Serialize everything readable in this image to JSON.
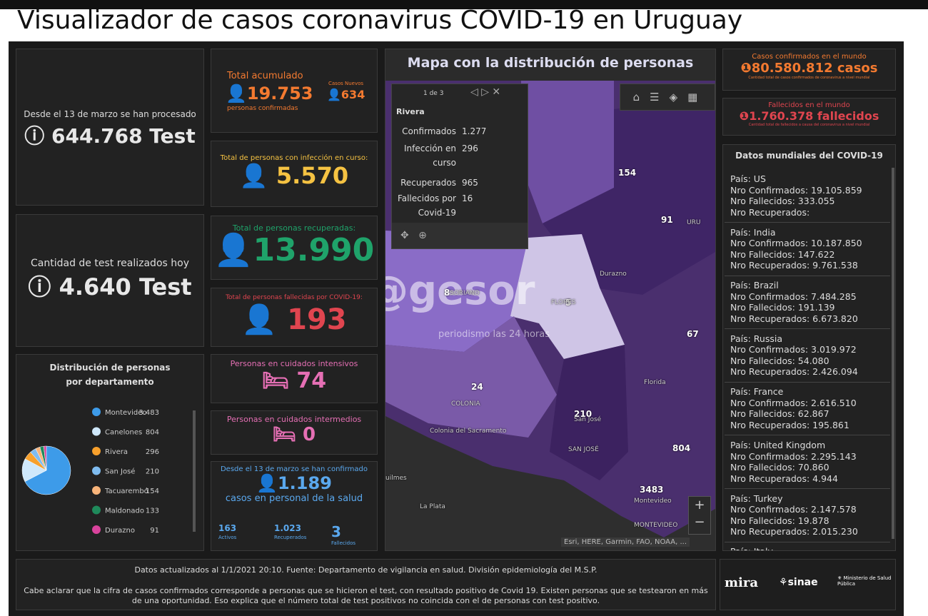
{
  "header": {
    "title": "Visualizador de casos coronavirus COVID-19 en Uruguay"
  },
  "tests": {
    "caption": "Desde el 13 de marzo se han procesado",
    "value": "644.768 Test"
  },
  "today": {
    "caption": "Cantidad de test realizados hoy",
    "value": "4.640 Test"
  },
  "total": {
    "label": "Total acumulado",
    "value": "19.753",
    "sub": "personas confirmadas",
    "new_label": "Casos Nuevos",
    "new_value": "634"
  },
  "active": {
    "label": "Total de personas con infección en curso:",
    "value": "5.570"
  },
  "recovered": {
    "label": "Total de personas recuperadas:",
    "value": "13.990"
  },
  "deaths": {
    "label": "Total de personas fallecidas por COVID-19:",
    "value": "193"
  },
  "icu": {
    "label": "Personas en cuidados intensivos",
    "value": "74"
  },
  "intermediate": {
    "label": "Personas en cuidados intermedios",
    "value": "0"
  },
  "health": {
    "caption": "Desde el 13 de marzo se han confirmado",
    "value": "1.189",
    "sub": "casos en personal de la salud",
    "stats": [
      {
        "value": "163",
        "label": "Activos"
      },
      {
        "value": "1.023",
        "label": "Recuperados"
      },
      {
        "value": "3",
        "label": "Fallecidos"
      }
    ]
  },
  "chart_data": {
    "type": "pie",
    "title": "Distribución de personas por departamento",
    "categories": [
      "Montevideo",
      "Canelones",
      "Rivera",
      "San José",
      "Tacuarembó",
      "Maldonado",
      "Durazno"
    ],
    "values": [
      3483,
      804,
      296,
      210,
      154,
      133,
      91
    ],
    "value_labels": [
      "3.483",
      "804",
      "296",
      "210",
      "154",
      "133",
      "91"
    ],
    "colors": [
      "#3d9be9",
      "#cfe8fb",
      "#f7a02c",
      "#7fbcf0",
      "#f8b47a",
      "#1f8a5b",
      "#d9439c"
    ]
  },
  "map": {
    "title": "Mapa con la distribución de personas",
    "popup": {
      "pager": "1 de 3",
      "name": "Rivera",
      "rows": [
        {
          "label": "Confirmados",
          "value": "1.277"
        },
        {
          "label": "Infección en curso",
          "value": "296"
        },
        {
          "label": "Recuperados",
          "value": "965"
        },
        {
          "label": "Fallecidos por Covid-19",
          "value": "16"
        }
      ]
    },
    "labels": [
      "154",
      "91",
      "67",
      "24",
      "210",
      "804",
      "3483",
      "5",
      "8",
      "URU",
      "Durazno",
      "FLORES",
      "SORIANO",
      "COLONIA",
      "Florida",
      "San José",
      "SAN JOSÉ",
      "Colonia del Sacramento",
      "Montevideo",
      "MONTEVIDEO",
      "La Plata",
      "uilmes"
    ],
    "attribution": "Esri, HERE, Garmin, FAO, NOAA, ..."
  },
  "watermark": {
    "brand": "@gesor",
    "tagline": "periodismo las 24 horas"
  },
  "world": {
    "cases": {
      "label": "Casos confirmados en el mundo",
      "value": "80.580.812 casos",
      "note": "Cantidad total de casos confirmados de coronavirus a nivel mundial"
    },
    "deaths": {
      "label": "Fallecidos en el mundo",
      "value": "1.760.378 fallecidos",
      "note": "Cantidad total de fallecidos a causa del coronavirus a nivel mundial"
    },
    "list_title": "Datos mundiales del COVID-19",
    "countries": [
      [
        "País: US",
        "Nro Confirmados: 19.105.859",
        "Nro Fallecidos: 333.055",
        "Nro Recuperados:"
      ],
      [
        "País: India",
        "Nro Confirmados: 10.187.850",
        "Nro Fallecidos: 147.622",
        "Nro Recuperados: 9.761.538"
      ],
      [
        "País: Brazil",
        "Nro Confirmados: 7.484.285",
        "Nro Fallecidos: 191.139",
        "Nro Recuperados: 6.673.820"
      ],
      [
        "País: Russia",
        "Nro Confirmados: 3.019.972",
        "Nro Fallecidos: 54.080",
        "Nro Recuperados: 2.426.094"
      ],
      [
        "País: France",
        "Nro Confirmados: 2.616.510",
        "Nro Fallecidos: 62.867",
        "Nro Recuperados: 195.861"
      ],
      [
        "País: United Kingdom",
        "Nro Confirmados: 2.295.143",
        "Nro Fallecidos: 70.860",
        "Nro Recuperados: 4.944"
      ],
      [
        "País: Turkey",
        "Nro Confirmados: 2.147.578",
        "Nro Fallecidos: 19.878",
        "Nro Recuperados: 2.015.230"
      ],
      [
        "País: Italy"
      ]
    ]
  },
  "footer": {
    "update": "Datos actualizados al 1/1/2021 20:10. Fuente: Departamento de vigilancia en salud. División epidemiología del M.S.P.",
    "note": "Cabe aclarar que la cifra de casos confirmados corresponde a personas que se hicieron el test, con resultado positivo de Covid 19. Existen personas que se testearon en más de una oportunidad. Eso explica que el número total de test positivos no coincida con el de personas con test positivo.",
    "logos": [
      "mira",
      "sinae",
      "Ministerio de Salud Pública"
    ]
  }
}
